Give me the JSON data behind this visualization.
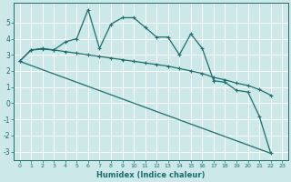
{
  "xlabel": "Humidex (Indice chaleur)",
  "background_color": "#cce8e8",
  "grid_color": "#ffffff",
  "line_color": "#1a6e6e",
  "xlim": [
    -0.5,
    23.5
  ],
  "ylim": [
    -3.5,
    6.2
  ],
  "yticks": [
    -3,
    -2,
    -1,
    0,
    1,
    2,
    3,
    4,
    5
  ],
  "xticks": [
    0,
    1,
    2,
    3,
    4,
    5,
    6,
    7,
    8,
    9,
    10,
    11,
    12,
    13,
    14,
    15,
    16,
    17,
    18,
    19,
    20,
    21,
    22,
    23
  ],
  "series1_x": [
    0,
    1,
    2,
    3,
    4,
    5,
    6,
    7,
    8,
    9,
    10,
    11,
    12,
    13,
    14,
    15,
    16,
    17,
    18,
    19,
    20,
    21,
    22
  ],
  "series1_y": [
    2.6,
    3.3,
    3.4,
    3.3,
    3.8,
    4.0,
    5.8,
    3.4,
    4.9,
    5.3,
    5.3,
    4.7,
    4.1,
    4.1,
    3.0,
    4.3,
    3.4,
    1.4,
    1.3,
    0.8,
    0.7,
    -0.8,
    -3.1
  ],
  "series2_x": [
    0,
    1,
    2,
    3,
    4,
    5,
    6,
    7,
    8,
    9,
    10,
    11,
    12,
    13,
    14,
    15,
    16,
    17,
    18,
    19,
    20,
    21,
    22
  ],
  "series2_y": [
    2.6,
    3.3,
    3.35,
    3.3,
    3.2,
    3.1,
    3.0,
    2.9,
    2.8,
    2.7,
    2.6,
    2.5,
    2.4,
    2.3,
    2.15,
    2.0,
    1.85,
    1.6,
    1.45,
    1.25,
    1.1,
    0.85,
    0.5
  ],
  "series3_x": [
    0,
    22
  ],
  "series3_y": [
    2.6,
    -3.1
  ]
}
